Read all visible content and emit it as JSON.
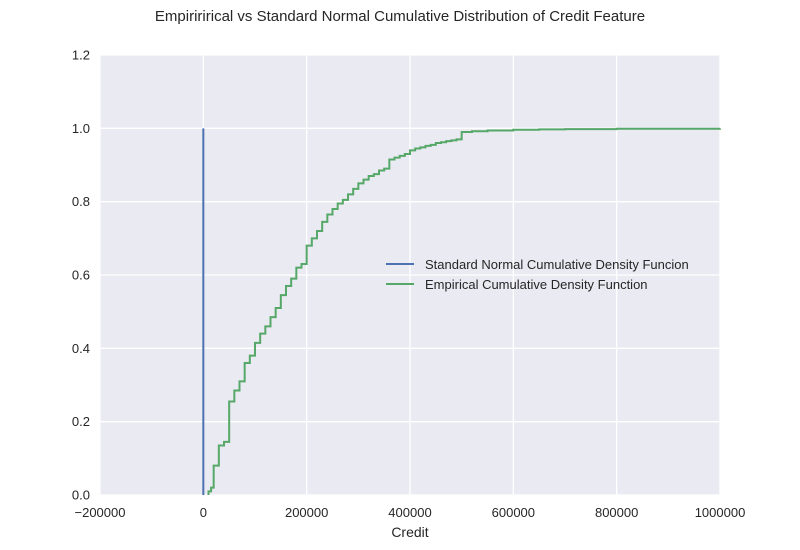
{
  "chart_data": {
    "type": "line",
    "title": "Empiririrical vs Standard Normal Cumulative Distribution of Credit Feature",
    "xlabel": "Credit",
    "ylabel": "",
    "xlim": [
      -200000,
      1000000
    ],
    "ylim": [
      0.0,
      1.2
    ],
    "xticks": [
      -200000,
      0,
      200000,
      400000,
      600000,
      800000,
      1000000
    ],
    "xtick_labels": [
      "−200000",
      "0",
      "200000",
      "400000",
      "600000",
      "800000",
      "1000000"
    ],
    "yticks": [
      0.0,
      0.2,
      0.4,
      0.6,
      0.8,
      1.0,
      1.2
    ],
    "ytick_labels": [
      "0.0",
      "0.2",
      "0.4",
      "0.6",
      "0.8",
      "1.0",
      "1.2"
    ],
    "grid": true,
    "legend_position": "center-right",
    "background": "#eaeaf2",
    "series": [
      {
        "name": "Standard Normal Cumulative Density Funcion",
        "color": "#4c72b0",
        "x": [
          -200000,
          -3,
          -1,
          0,
          1,
          3,
          1000000
        ],
        "y": [
          0.0,
          0.0,
          0.16,
          0.5,
          0.84,
          1.0,
          1.0
        ]
      },
      {
        "name": "Empirical Cumulative Density Function",
        "color": "#55a868",
        "x": [
          10000,
          15000,
          20000,
          30000,
          40000,
          50000,
          60000,
          70000,
          80000,
          90000,
          100000,
          110000,
          120000,
          130000,
          140000,
          150000,
          160000,
          170000,
          180000,
          190000,
          200000,
          210000,
          220000,
          230000,
          240000,
          250000,
          260000,
          270000,
          280000,
          290000,
          300000,
          310000,
          320000,
          330000,
          340000,
          350000,
          360000,
          370000,
          380000,
          390000,
          400000,
          410000,
          420000,
          430000,
          440000,
          450000,
          460000,
          470000,
          480000,
          490000,
          500000,
          520000,
          550000,
          600000,
          650000,
          700000,
          800000,
          1000000
        ],
        "y": [
          0.01,
          0.02,
          0.08,
          0.135,
          0.145,
          0.255,
          0.285,
          0.31,
          0.36,
          0.38,
          0.415,
          0.44,
          0.46,
          0.485,
          0.51,
          0.545,
          0.57,
          0.59,
          0.62,
          0.63,
          0.68,
          0.7,
          0.72,
          0.745,
          0.765,
          0.78,
          0.795,
          0.805,
          0.82,
          0.835,
          0.85,
          0.86,
          0.87,
          0.875,
          0.885,
          0.89,
          0.915,
          0.92,
          0.925,
          0.93,
          0.94,
          0.945,
          0.948,
          0.952,
          0.955,
          0.96,
          0.962,
          0.965,
          0.967,
          0.97,
          0.99,
          0.992,
          0.994,
          0.996,
          0.997,
          0.998,
          0.999,
          1.0
        ]
      }
    ]
  }
}
